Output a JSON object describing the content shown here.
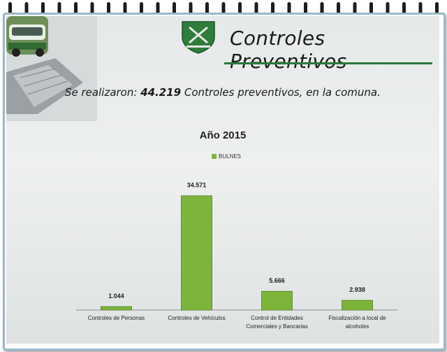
{
  "slide": {
    "title": "Controles Preventivos",
    "subtitle_prefix": "Se realizaron: ",
    "subtitle_number": "44.219",
    "subtitle_suffix": " Controles preventivos, en la comuna.",
    "accent_color": "#2c7a3a",
    "bar_color": "#7db53a"
  },
  "chart_data": {
    "type": "bar",
    "title": "Año 2015",
    "legend_position": "top",
    "series": [
      {
        "name": "BULNES",
        "values": [
          1044,
          34571,
          5666,
          2938
        ]
      }
    ],
    "categories": [
      "Controles de Personas",
      "Controles de Vehículos",
      "Control de Entidades Comerciales y Bancarias",
      "Fiscalización a local de alcoholes"
    ],
    "category_lines": [
      [
        "Controles de Personas"
      ],
      [
        "Controles de Vehículos"
      ],
      [
        "Control de Entidades",
        "Comerciales y Bancarias"
      ],
      [
        "Fiscalización a local de",
        "alcoholes"
      ]
    ],
    "value_labels": [
      "1.044",
      "34.571",
      "5.666",
      "2.938"
    ],
    "ylim": [
      0,
      36000
    ],
    "grid": false
  }
}
